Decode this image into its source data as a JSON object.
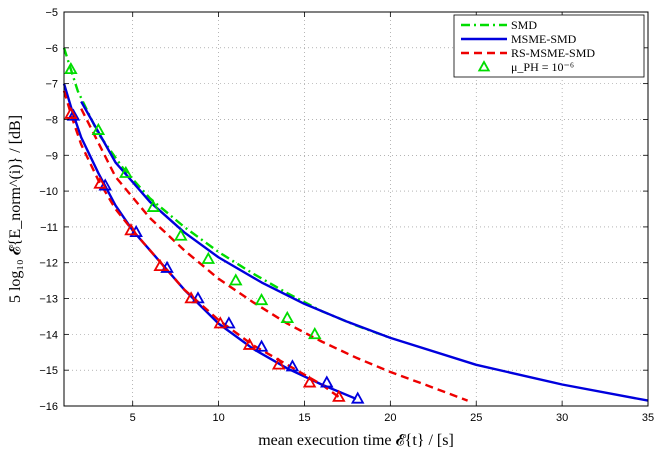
{
  "chart_data": {
    "type": "line",
    "title": "",
    "xlabel": "mean execution time 𝓔{t} / [s]",
    "ylabel": "5 log₁₀ 𝓔{E_norm^(i)} / [dB]",
    "xlim": [
      1,
      35
    ],
    "ylim": [
      -16,
      -5
    ],
    "xticks": [
      5,
      10,
      15,
      20,
      25,
      30,
      35
    ],
    "yticks": [
      -16,
      -15,
      -14,
      -13,
      -12,
      -11,
      -10,
      -9,
      -8,
      -7,
      -6,
      -5
    ],
    "grid": true,
    "legend_position": "top-right",
    "series": [
      {
        "name": "SMD",
        "style": "dash-dot",
        "color": "#00dd00",
        "x": [
          1,
          1.8,
          3,
          4.5,
          6,
          8,
          10,
          12,
          14,
          16,
          18,
          20
        ],
        "y": [
          -6.0,
          -7.2,
          -8.4,
          -9.4,
          -10.2,
          -11.0,
          -11.7,
          -12.3,
          -12.85,
          -13.35,
          -13.75,
          -14.1
        ]
      },
      {
        "name": "MSME-SMD",
        "style": "solid",
        "color": "#0000dd",
        "x": [
          1,
          1.5,
          2,
          3,
          4,
          5,
          6,
          8,
          10,
          12,
          14,
          16,
          18
        ],
        "y": [
          -7.0,
          -7.8,
          -8.5,
          -9.5,
          -10.4,
          -11.1,
          -11.65,
          -12.75,
          -13.7,
          -14.4,
          -14.95,
          -15.4,
          -15.8
        ],
        "label_at": 1
      },
      {
        "name": "MSME-SMD",
        "style": "solid",
        "color": "#0000dd",
        "x": [
          2,
          4,
          6,
          8,
          10,
          12.5,
          15,
          17.5,
          20,
          25,
          30,
          35
        ],
        "y": [
          -7.5,
          -9.2,
          -10.3,
          -11.15,
          -11.85,
          -12.55,
          -13.15,
          -13.65,
          -14.1,
          -14.85,
          -15.4,
          -15.85
        ],
        "label_at": 0
      },
      {
        "name": "RS-MSME-SMD",
        "style": "dashed",
        "color": "#ee0000",
        "x": [
          1,
          1.5,
          2,
          3,
          4,
          5,
          6,
          8,
          10,
          12,
          14,
          16,
          17
        ],
        "y": [
          -7.2,
          -8.0,
          -8.7,
          -9.7,
          -10.5,
          -11.1,
          -11.65,
          -12.75,
          -13.6,
          -14.3,
          -14.85,
          -15.4,
          -15.75
        ]
      },
      {
        "name": "RS-MSME-SMD",
        "style": "dashed",
        "color": "#ee0000",
        "x": [
          2,
          4,
          6,
          8,
          10,
          12,
          14,
          16,
          18,
          20,
          22,
          24.5
        ],
        "y": [
          -7.7,
          -9.6,
          -10.75,
          -11.65,
          -12.45,
          -13.1,
          -13.7,
          -14.2,
          -14.65,
          -15.05,
          -15.4,
          -15.85
        ]
      }
    ],
    "markers": [
      {
        "name": "μ_PH = 10⁻⁶",
        "color": "#00dd00",
        "x": [
          1.4,
          3.0,
          4.6,
          6.2,
          7.8,
          9.4,
          11.0,
          12.5,
          14.0,
          15.6
        ],
        "y": [
          -6.6,
          -8.3,
          -9.5,
          -10.45,
          -11.25,
          -11.9,
          -12.5,
          -13.05,
          -13.55,
          -14.0
        ]
      },
      {
        "name": "μ_PH = 10⁻⁶",
        "color": "#0000dd",
        "x": [
          1.55,
          3.4,
          5.2,
          7.0,
          8.8,
          10.6,
          12.5,
          14.3,
          16.3,
          18.1
        ],
        "y": [
          -7.9,
          -9.85,
          -11.15,
          -12.15,
          -13.0,
          -13.7,
          -14.35,
          -14.9,
          -15.35,
          -15.8
        ]
      },
      {
        "name": "μ_PH = 10⁻⁶",
        "color": "#ee0000",
        "x": [
          1.4,
          3.1,
          4.9,
          6.6,
          8.4,
          10.1,
          11.8,
          13.5,
          15.3,
          17.0
        ],
        "y": [
          -7.85,
          -9.8,
          -11.1,
          -12.1,
          -13.0,
          -13.7,
          -14.3,
          -14.85,
          -15.35,
          -15.75
        ]
      }
    ],
    "legend": [
      {
        "label": "SMD",
        "style": "dash-dot",
        "color": "#00dd00"
      },
      {
        "label": "MSME-SMD",
        "style": "solid",
        "color": "#0000dd"
      },
      {
        "label": "RS-MSME-SMD",
        "style": "dashed",
        "color": "#ee0000"
      },
      {
        "label": "μ_PH = 10⁻⁶",
        "style": "triangle",
        "color": "#00dd00"
      }
    ]
  }
}
